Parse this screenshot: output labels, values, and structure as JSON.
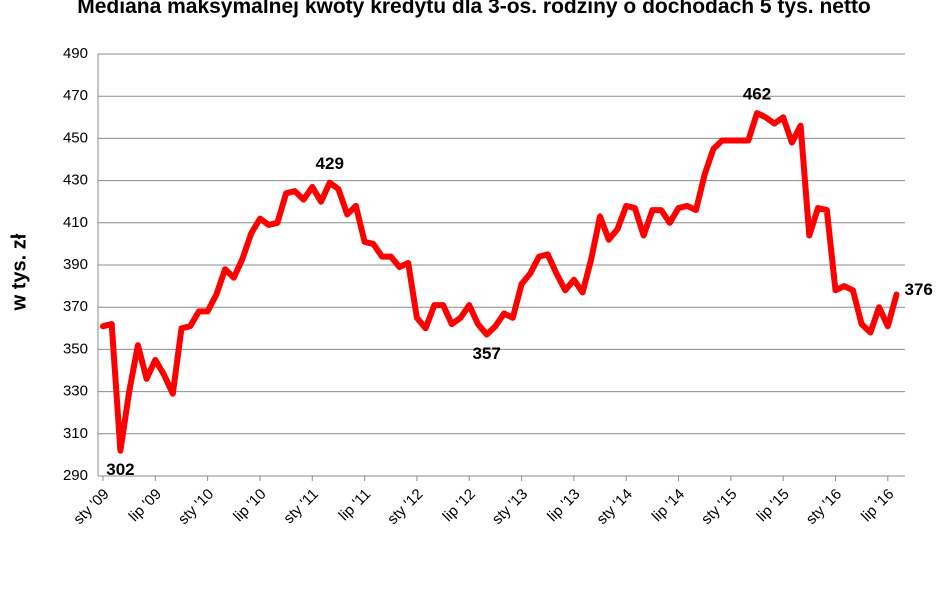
{
  "chart_data": {
    "type": "line",
    "title": "Mediana maksymalnej kwoty kredytu dla 3-os. rodziny o dochodach 5 tys. netto",
    "y_label": "w tys. zł",
    "categories": [
      "sty '09",
      null,
      null,
      null,
      null,
      null,
      "lip '09",
      null,
      null,
      null,
      null,
      null,
      "sty '10",
      null,
      null,
      null,
      null,
      null,
      "lip '10",
      null,
      null,
      null,
      null,
      null,
      "sty '11",
      null,
      null,
      null,
      null,
      null,
      "lip '11",
      null,
      null,
      null,
      null,
      null,
      "sty '12",
      null,
      null,
      null,
      null,
      null,
      "lip '12",
      null,
      null,
      null,
      null,
      null,
      "sty '13",
      null,
      null,
      null,
      null,
      null,
      "lip '13",
      null,
      null,
      null,
      null,
      null,
      "sty '14",
      null,
      null,
      null,
      null,
      null,
      "lip '14",
      null,
      null,
      null,
      null,
      null,
      "sty '15",
      null,
      null,
      null,
      null,
      null,
      "lip '15",
      null,
      null,
      null,
      null,
      null,
      "sty '16",
      null,
      null,
      null,
      null,
      null,
      "lip '16",
      null
    ],
    "values": [
      361,
      362,
      302,
      330,
      352,
      336,
      345,
      338,
      329,
      360,
      361,
      368,
      368,
      376,
      388,
      384,
      393,
      405,
      412,
      409,
      410,
      424,
      425,
      421,
      427,
      420,
      429,
      426,
      414,
      418,
      401,
      400,
      394,
      394,
      389,
      391,
      365,
      360,
      371,
      371,
      362,
      365,
      371,
      362,
      357,
      361,
      367,
      365,
      381,
      386,
      394,
      395,
      386,
      378,
      383,
      377,
      393,
      413,
      402,
      407,
      418,
      417,
      404,
      416,
      416,
      410,
      417,
      418,
      416,
      433,
      445,
      449,
      449,
      449,
      449,
      462,
      460,
      457,
      460,
      448,
      456,
      404,
      417,
      416,
      378,
      380,
      378,
      362,
      358,
      370,
      361,
      376
    ],
    "data_labels_at": [
      2,
      26,
      44,
      75,
      91
    ],
    "color": "#ff0000",
    "ylim": [
      290,
      490
    ],
    "yticks": [
      290,
      310,
      330,
      350,
      370,
      390,
      410,
      430,
      450,
      470,
      490
    ],
    "grid": true
  }
}
